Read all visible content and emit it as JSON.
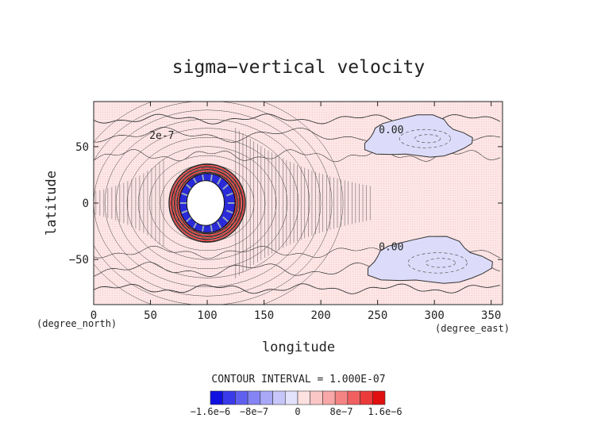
{
  "chart_data": {
    "type": "heatmap",
    "title": "sigma−vertical velocity",
    "xlabel": "longitude",
    "ylabel": "latitude",
    "x_unit": "(degree_east)",
    "y_unit": "(degree_north)",
    "xlim": [
      0,
      360
    ],
    "ylim": [
      -90,
      90
    ],
    "x_ticks": [
      0,
      50,
      100,
      150,
      200,
      250,
      300,
      350
    ],
    "x_tick_labels": [
      "0",
      "50",
      "100",
      "150",
      "200",
      "250",
      "300",
      "350"
    ],
    "y_ticks": [
      -50,
      0,
      50
    ],
    "y_tick_labels": [
      "−50",
      "0",
      "50"
    ],
    "contour_interval_label": "CONTOUR INTERVAL = 1.000E-07",
    "contour_labels": [
      {
        "text": "0.00",
        "lon": 262,
        "lat": 62
      },
      {
        "text": "0.00",
        "lon": 262,
        "lat": -42
      },
      {
        "text": "2e-7",
        "lon": 60,
        "lat": 57
      }
    ],
    "features": [
      {
        "kind": "negative-region",
        "lon": 285,
        "lat": 58,
        "rlon": 45,
        "rlat": 18
      },
      {
        "kind": "negative-region",
        "lon": 295,
        "lat": -52,
        "rlon": 52,
        "rlat": 20
      },
      {
        "kind": "ring-vortex",
        "lon": 100,
        "lat": 0,
        "rlon": 30,
        "rlat": 32
      }
    ],
    "colorbar": {
      "colors": [
        "#1010e0",
        "#3a3aea",
        "#6060f0",
        "#8484f4",
        "#a8a8f7",
        "#c6c6fa",
        "#e2e2fc",
        "#fde0e0",
        "#fbc6c6",
        "#f8a8a8",
        "#f48484",
        "#f06060",
        "#ea3a3a",
        "#e01010"
      ],
      "tick_labels": [
        "−1.6e−6",
        "−8e−7",
        "0",
        "8e−7",
        "1.6e−6"
      ]
    }
  }
}
